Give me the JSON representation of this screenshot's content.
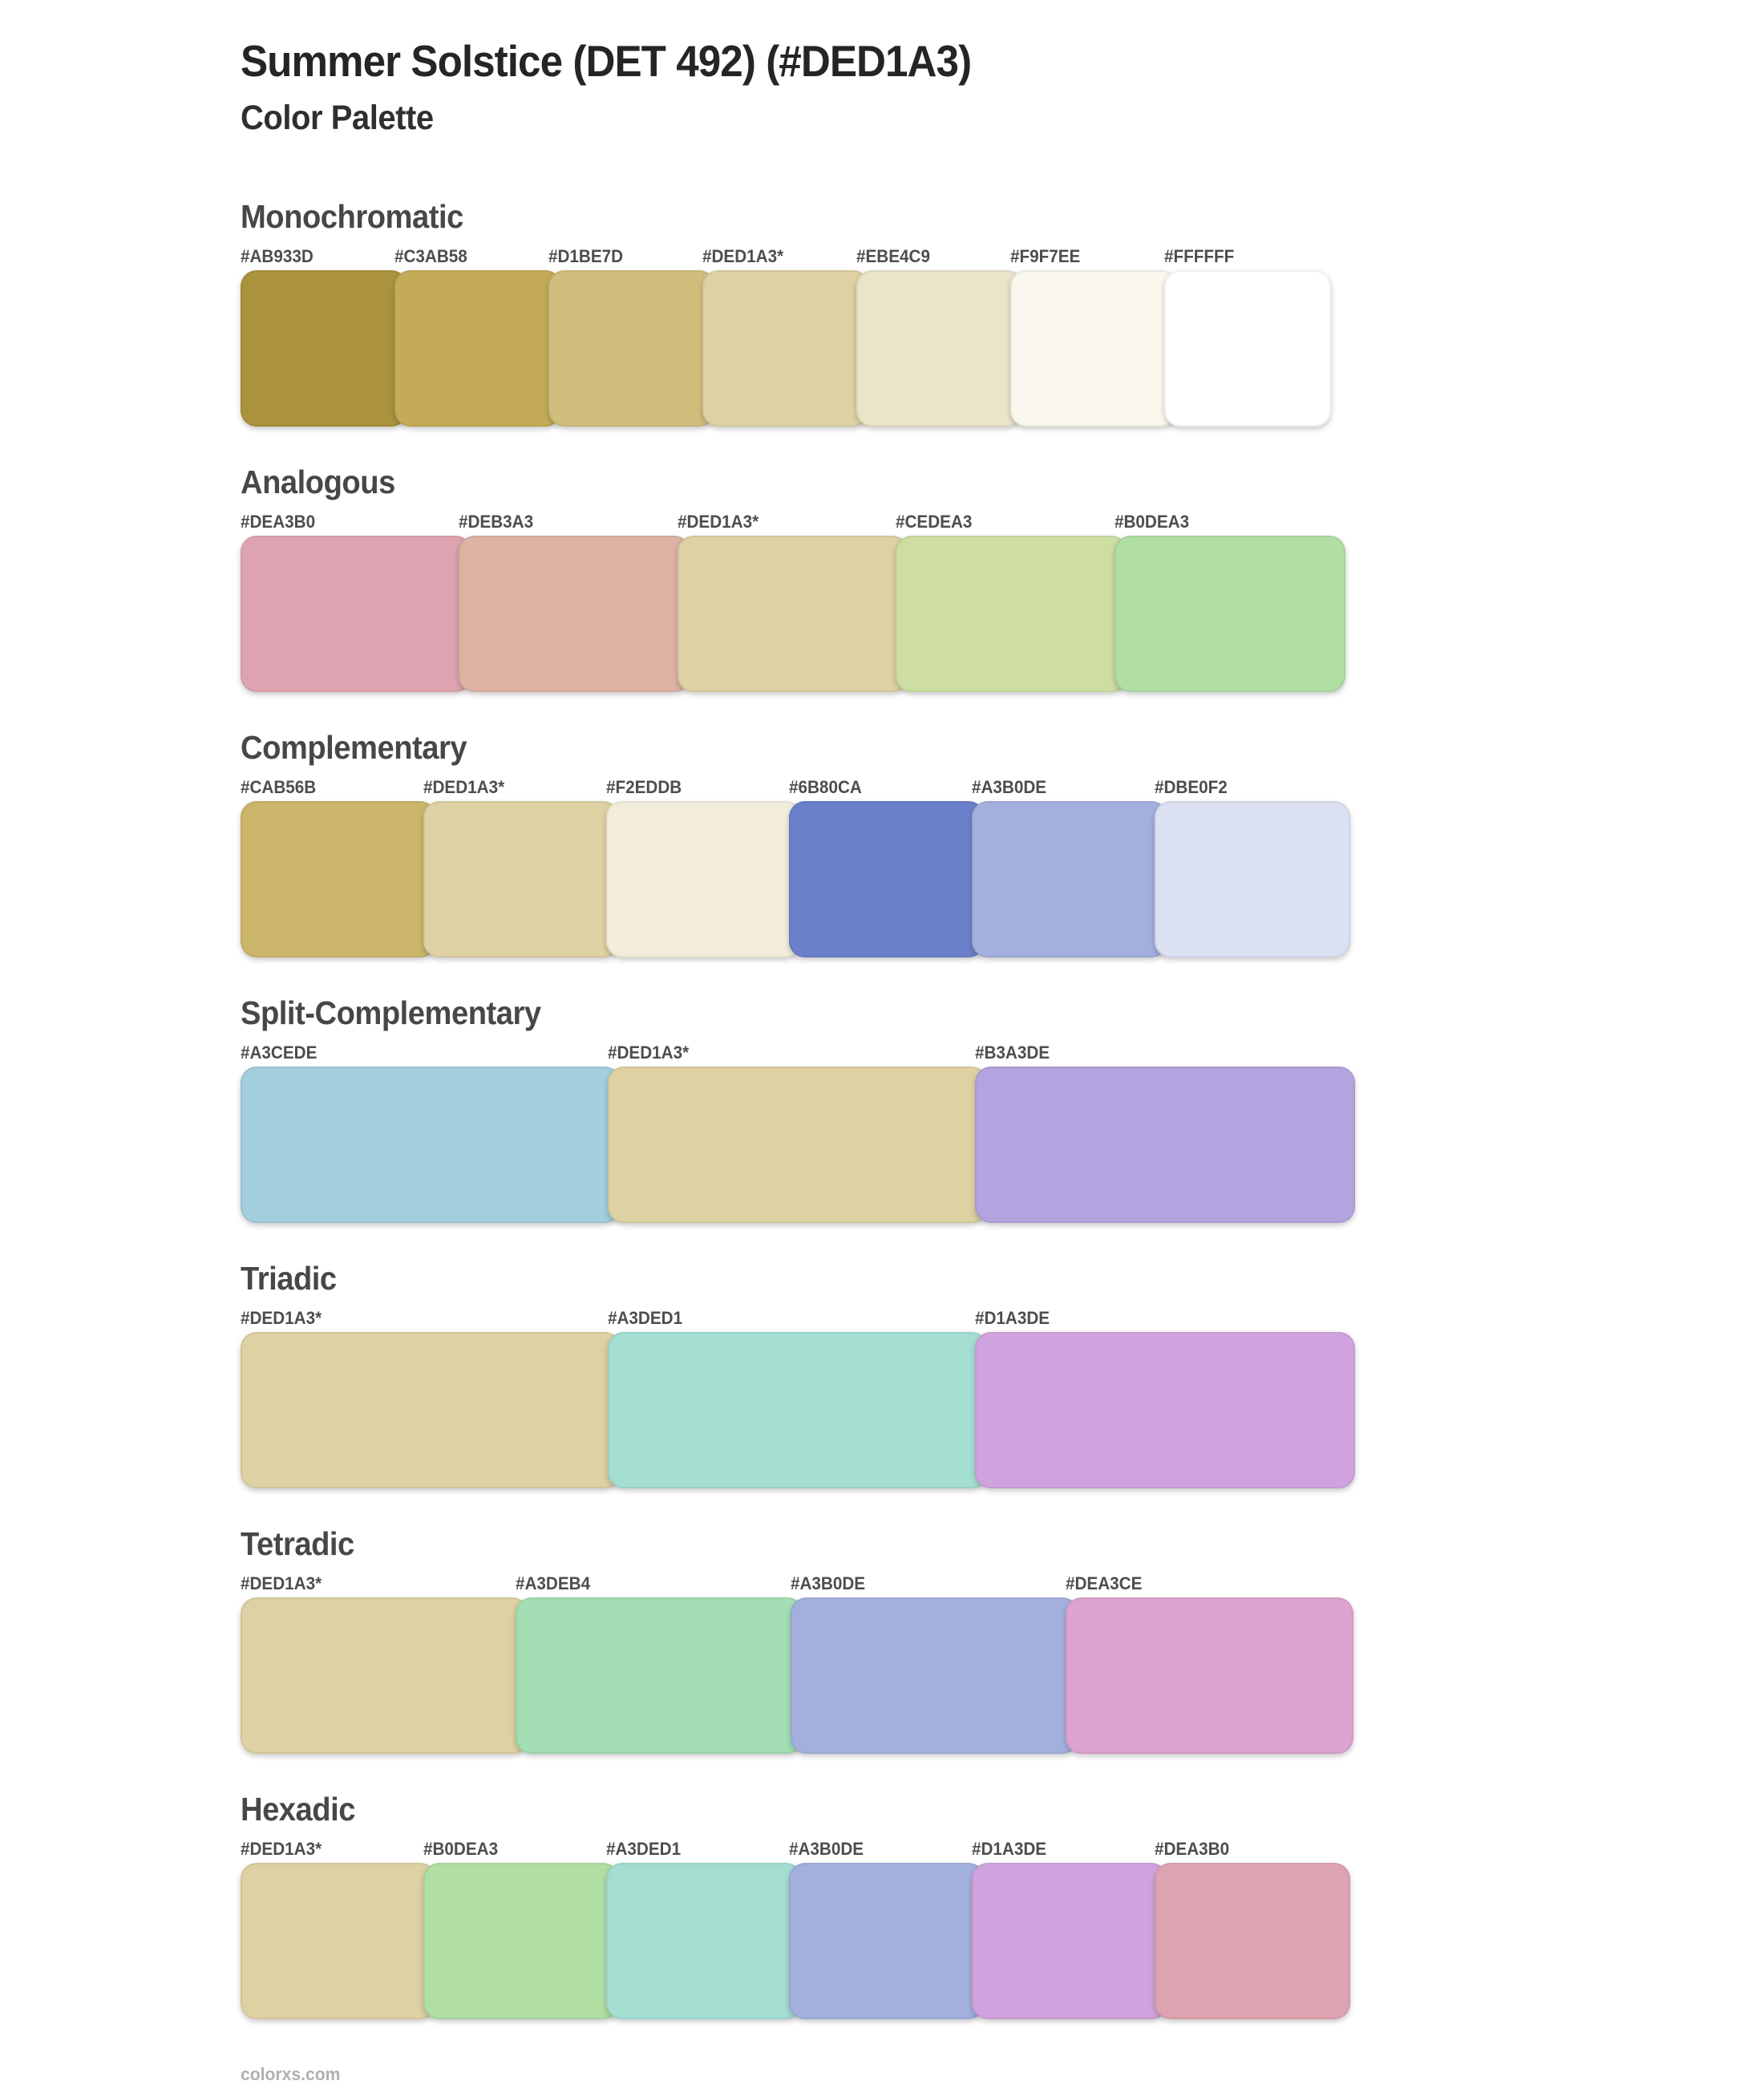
{
  "page": {
    "title": "Summer Solstice (DET 492) (#DED1A3)",
    "subtitle": "Color Palette",
    "footer": "colorxs.com"
  },
  "palette": {
    "base_hex": "#DED1A3",
    "base_marker": "*"
  },
  "sections": [
    {
      "id": "monochromatic",
      "heading": "Monochromatic",
      "swatches": [
        {
          "label": "#AB933D",
          "color": "#AB933D"
        },
        {
          "label": "#C3AB58",
          "color": "#C3AB58"
        },
        {
          "label": "#D1BE7D",
          "color": "#D1BE7D"
        },
        {
          "label": "#DED1A3*",
          "color": "#DED1A3"
        },
        {
          "label": "#EBE4C9",
          "color": "#EBE4C9"
        },
        {
          "label": "#F9F7EE",
          "color": "#F9F7EE"
        },
        {
          "label": "#FFFFFF",
          "color": "#FFFFFF"
        }
      ]
    },
    {
      "id": "analogous",
      "heading": "Analogous",
      "swatches": [
        {
          "label": "#DEA3B0",
          "color": "#DEA3B0"
        },
        {
          "label": "#DEB3A3",
          "color": "#DEB3A3"
        },
        {
          "label": "#DED1A3*",
          "color": "#DED1A3"
        },
        {
          "label": "#CEDEA3",
          "color": "#CEDEA3"
        },
        {
          "label": "#B0DEA3",
          "color": "#B0DEA3"
        }
      ]
    },
    {
      "id": "complementary",
      "heading": "Complementary",
      "swatches": [
        {
          "label": "#CAB56B",
          "color": "#CAB56B"
        },
        {
          "label": "#DED1A3*",
          "color": "#DED1A3"
        },
        {
          "label": "#F2EDDB",
          "color": "#F2EDDB"
        },
        {
          "label": "#6B80CA",
          "color": "#6B80CA"
        },
        {
          "label": "#A3B0DE",
          "color": "#A3B0DE"
        },
        {
          "label": "#DBE0F2",
          "color": "#DBE0F2"
        }
      ]
    },
    {
      "id": "split-complementary",
      "heading": "Split-Complementary",
      "swatches": [
        {
          "label": "#A3CEDE",
          "color": "#A3CEDE"
        },
        {
          "label": "#DED1A3*",
          "color": "#DED1A3"
        },
        {
          "label": "#B3A3DE",
          "color": "#B3A3DE"
        }
      ]
    },
    {
      "id": "triadic",
      "heading": "Triadic",
      "swatches": [
        {
          "label": "#DED1A3*",
          "color": "#DED1A3"
        },
        {
          "label": "#A3DED1",
          "color": "#A3DED1"
        },
        {
          "label": "#D1A3DE",
          "color": "#D1A3DE"
        }
      ]
    },
    {
      "id": "tetradic",
      "heading": "Tetradic",
      "swatches": [
        {
          "label": "#DED1A3*",
          "color": "#DED1A3"
        },
        {
          "label": "#A3DEB4",
          "color": "#A3DEB4"
        },
        {
          "label": "#A3B0DE",
          "color": "#A3B0DE"
        },
        {
          "label": "#DEA3CE",
          "color": "#DEA3CE"
        }
      ]
    },
    {
      "id": "hexadic",
      "heading": "Hexadic",
      "swatches": [
        {
          "label": "#DED1A3*",
          "color": "#DED1A3"
        },
        {
          "label": "#B0DEA3",
          "color": "#B0DEA3"
        },
        {
          "label": "#A3DED1",
          "color": "#A3DED1"
        },
        {
          "label": "#A3B0DE",
          "color": "#A3B0DE"
        },
        {
          "label": "#D1A3DE",
          "color": "#D1A3DE"
        },
        {
          "label": "#DEA3B0",
          "color": "#DEA3B0"
        }
      ]
    }
  ]
}
